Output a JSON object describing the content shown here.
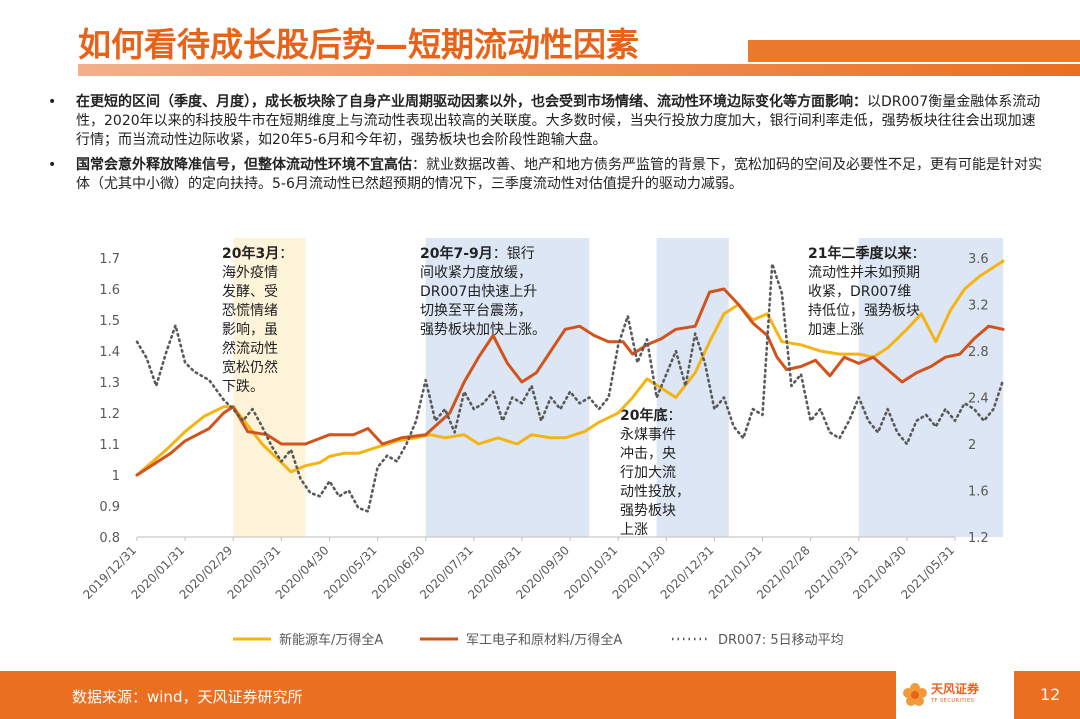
{
  "header": {
    "title": "如何看待成长股后势—短期流动性因素"
  },
  "bullets": [
    {
      "dot": "•",
      "bold": "在更短的区间（季度、月度），成长板块除了自身产业周期驱动因素以外，也会受到市场情绪、流动性环境边际变化等方面影响：",
      "text": "以DR007衡量金融体系流动性，2020年以来的科技股牛市在短期维度上与流动性表现出较高的关联度。大多数时候，当央行投放力度加大，银行间利率走低，强势板块往往会出现加速行情；而当流动性边际收紧，如20年5-6月和今年初，强势板块也会阶段性跑输大盘。"
    },
    {
      "dot": "•",
      "bold": "国常会意外释放降准信号，但整体流动性环境不宜高估",
      "text": "：就业数据改善、地产和地方债务严监管的背景下，宽松加码的空间及必要性不足，更有可能是针对实体（尤其中小微）的定向扶持。5-6月流动性已然超预期的情况下，三季度流动性对估值提升的驱动力减弱。"
    }
  ],
  "annotations": [
    {
      "title": "20年3月",
      "lines": [
        "：",
        "海外疫情",
        "发酵、受",
        "恐慌情绪",
        "影响，虽",
        "然流动性",
        "宽松仍然",
        "下跌。"
      ]
    },
    {
      "title": "20年7-9月",
      "lines": [
        "：银行",
        "间收紧力度放缓，",
        "DR007由快速上升",
        "切换至平台震荡，",
        "强势板块加快上涨。"
      ]
    },
    {
      "title": "20年底",
      "lines": [
        "：",
        "永煤事件",
        "冲击，央",
        "行加大流",
        "动性投放，",
        "强势板块",
        "上涨"
      ]
    },
    {
      "title": "21年二季度以来",
      "lines": [
        "：",
        "流动性并未如预期",
        "收紧，DR007维",
        "持低位，强势板块",
        "加速上涨"
      ]
    }
  ],
  "colors": {
    "accent": "#e8631a",
    "series1": "#f5b414",
    "series2": "#d0541c",
    "series3": "#595959",
    "shade_yellow": "#fdf3d8",
    "shade_blue": "#dce6f4"
  },
  "chart_data": {
    "type": "line",
    "x_ticks": [
      "2019/12/31",
      "2020/01/31",
      "2020/02/29",
      "2020/03/31",
      "2020/04/30",
      "2020/05/31",
      "2020/06/30",
      "2020/07/31",
      "2020/08/31",
      "2020/09/30",
      "2020/10/31",
      "2020/11/30",
      "2020/12/31",
      "2021/01/31",
      "2021/02/28",
      "2021/03/31",
      "2021/04/30",
      "2021/05/31"
    ],
    "y_left": {
      "ticks": [
        "0.8",
        "0.9",
        "1",
        "1.1",
        "1.2",
        "1.3",
        "1.4",
        "1.5",
        "1.6",
        "1.7"
      ],
      "range": [
        0.8,
        1.7
      ]
    },
    "y_right": {
      "ticks": [
        "1.2",
        "1.6",
        "2",
        "2.4",
        "2.8",
        "3.2",
        "3.6"
      ],
      "range": [
        1.2,
        3.6
      ]
    },
    "series": [
      {
        "name": "新能源车/万得全A",
        "axis": "left",
        "values": [
          [
            0,
            1.0
          ],
          [
            0.3,
            1.04
          ],
          [
            0.6,
            1.08
          ],
          [
            1,
            1.14
          ],
          [
            1.4,
            1.19
          ],
          [
            1.8,
            1.22
          ],
          [
            2,
            1.22
          ],
          [
            2.3,
            1.16
          ],
          [
            2.6,
            1.1
          ],
          [
            3,
            1.04
          ],
          [
            3.2,
            1.01
          ],
          [
            3.5,
            1.03
          ],
          [
            3.8,
            1.04
          ],
          [
            4,
            1.06
          ],
          [
            4.3,
            1.07
          ],
          [
            4.6,
            1.07
          ],
          [
            5,
            1.09
          ],
          [
            5.4,
            1.11
          ],
          [
            5.8,
            1.12
          ],
          [
            6.1,
            1.13
          ],
          [
            6.4,
            1.12
          ],
          [
            6.8,
            1.13
          ],
          [
            7.1,
            1.1
          ],
          [
            7.5,
            1.12
          ],
          [
            7.9,
            1.1
          ],
          [
            8.2,
            1.13
          ],
          [
            8.6,
            1.12
          ],
          [
            8.9,
            1.12
          ],
          [
            9.3,
            1.14
          ],
          [
            9.6,
            1.17
          ],
          [
            10,
            1.2
          ],
          [
            10.3,
            1.25
          ],
          [
            10.6,
            1.31
          ],
          [
            10.9,
            1.28
          ],
          [
            11.2,
            1.25
          ],
          [
            11.6,
            1.33
          ],
          [
            11.9,
            1.43
          ],
          [
            12.2,
            1.52
          ],
          [
            12.5,
            1.55
          ],
          [
            12.8,
            1.5
          ],
          [
            13.1,
            1.52
          ],
          [
            13.4,
            1.43
          ],
          [
            13.8,
            1.42
          ],
          [
            14.2,
            1.4
          ],
          [
            14.6,
            1.39
          ],
          [
            15,
            1.39
          ],
          [
            15.3,
            1.38
          ],
          [
            15.6,
            1.41
          ],
          [
            16,
            1.47
          ],
          [
            16.3,
            1.52
          ],
          [
            16.6,
            1.43
          ],
          [
            16.9,
            1.53
          ],
          [
            17.2,
            1.6
          ],
          [
            17.5,
            1.64
          ],
          [
            17.8,
            1.67
          ],
          [
            18,
            1.69
          ]
        ]
      },
      {
        "name": "军工电子和原材料/万得全A",
        "axis": "left",
        "values": [
          [
            0,
            1.0
          ],
          [
            0.3,
            1.03
          ],
          [
            0.7,
            1.07
          ],
          [
            1,
            1.11
          ],
          [
            1.5,
            1.15
          ],
          [
            1.8,
            1.2
          ],
          [
            2,
            1.22
          ],
          [
            2.3,
            1.14
          ],
          [
            2.7,
            1.13
          ],
          [
            3,
            1.1
          ],
          [
            3.5,
            1.1
          ],
          [
            4,
            1.13
          ],
          [
            4.5,
            1.13
          ],
          [
            4.8,
            1.15
          ],
          [
            5.1,
            1.1
          ],
          [
            5.5,
            1.12
          ],
          [
            6,
            1.13
          ],
          [
            6.5,
            1.2
          ],
          [
            6.8,
            1.3
          ],
          [
            7.1,
            1.38
          ],
          [
            7.4,
            1.45
          ],
          [
            7.7,
            1.36
          ],
          [
            8,
            1.3
          ],
          [
            8.3,
            1.33
          ],
          [
            8.6,
            1.4
          ],
          [
            8.9,
            1.47
          ],
          [
            9.2,
            1.48
          ],
          [
            9.5,
            1.45
          ],
          [
            9.8,
            1.43
          ],
          [
            10.1,
            1.43
          ],
          [
            10.3,
            1.39
          ],
          [
            10.6,
            1.42
          ],
          [
            10.9,
            1.44
          ],
          [
            11.2,
            1.47
          ],
          [
            11.6,
            1.48
          ],
          [
            11.9,
            1.59
          ],
          [
            12.2,
            1.6
          ],
          [
            12.5,
            1.55
          ],
          [
            12.8,
            1.49
          ],
          [
            13.1,
            1.45
          ],
          [
            13.3,
            1.38
          ],
          [
            13.5,
            1.34
          ],
          [
            13.8,
            1.35
          ],
          [
            14.1,
            1.37
          ],
          [
            14.4,
            1.32
          ],
          [
            14.7,
            1.38
          ],
          [
            15,
            1.36
          ],
          [
            15.3,
            1.38
          ],
          [
            15.6,
            1.34
          ],
          [
            15.9,
            1.3
          ],
          [
            16.2,
            1.33
          ],
          [
            16.5,
            1.35
          ],
          [
            16.8,
            1.38
          ],
          [
            17.1,
            1.39
          ],
          [
            17.4,
            1.44
          ],
          [
            17.7,
            1.48
          ],
          [
            18,
            1.47
          ]
        ]
      },
      {
        "name": "DR007: 5日移动平均",
        "axis": "right",
        "values": [
          [
            0,
            2.88
          ],
          [
            0.2,
            2.74
          ],
          [
            0.4,
            2.5
          ],
          [
            0.6,
            2.78
          ],
          [
            0.8,
            3.02
          ],
          [
            1.0,
            2.7
          ],
          [
            1.2,
            2.62
          ],
          [
            1.5,
            2.55
          ],
          [
            1.8,
            2.38
          ],
          [
            2.0,
            2.3
          ],
          [
            2.2,
            2.2
          ],
          [
            2.4,
            2.3
          ],
          [
            2.6,
            2.15
          ],
          [
            2.8,
            1.98
          ],
          [
            3.0,
            1.85
          ],
          [
            3.2,
            1.95
          ],
          [
            3.4,
            1.7
          ],
          [
            3.6,
            1.58
          ],
          [
            3.8,
            1.55
          ],
          [
            4.0,
            1.68
          ],
          [
            4.2,
            1.55
          ],
          [
            4.4,
            1.6
          ],
          [
            4.6,
            1.45
          ],
          [
            4.8,
            1.42
          ],
          [
            5.0,
            1.8
          ],
          [
            5.2,
            1.9
          ],
          [
            5.4,
            1.85
          ],
          [
            5.6,
            2.0
          ],
          [
            5.8,
            2.2
          ],
          [
            6.0,
            2.55
          ],
          [
            6.2,
            2.2
          ],
          [
            6.4,
            2.3
          ],
          [
            6.6,
            2.1
          ],
          [
            6.8,
            2.45
          ],
          [
            7.0,
            2.3
          ],
          [
            7.2,
            2.35
          ],
          [
            7.4,
            2.45
          ],
          [
            7.6,
            2.2
          ],
          [
            7.8,
            2.4
          ],
          [
            8.0,
            2.35
          ],
          [
            8.2,
            2.5
          ],
          [
            8.4,
            2.2
          ],
          [
            8.6,
            2.4
          ],
          [
            8.8,
            2.3
          ],
          [
            9.0,
            2.45
          ],
          [
            9.2,
            2.35
          ],
          [
            9.4,
            2.4
          ],
          [
            9.6,
            2.3
          ],
          [
            9.8,
            2.4
          ],
          [
            10.0,
            2.85
          ],
          [
            10.2,
            3.1
          ],
          [
            10.4,
            2.7
          ],
          [
            10.6,
            2.9
          ],
          [
            10.8,
            2.4
          ],
          [
            11.0,
            2.6
          ],
          [
            11.2,
            2.8
          ],
          [
            11.4,
            2.5
          ],
          [
            11.6,
            2.95
          ],
          [
            11.8,
            2.7
          ],
          [
            12.0,
            2.3
          ],
          [
            12.2,
            2.4
          ],
          [
            12.4,
            2.15
          ],
          [
            12.6,
            2.05
          ],
          [
            12.8,
            2.3
          ],
          [
            13.0,
            2.25
          ],
          [
            13.2,
            3.55
          ],
          [
            13.4,
            3.3
          ],
          [
            13.6,
            2.5
          ],
          [
            13.8,
            2.6
          ],
          [
            14.0,
            2.2
          ],
          [
            14.2,
            2.3
          ],
          [
            14.4,
            2.1
          ],
          [
            14.6,
            2.05
          ],
          [
            14.8,
            2.2
          ],
          [
            15.0,
            2.4
          ],
          [
            15.2,
            2.2
          ],
          [
            15.4,
            2.1
          ],
          [
            15.6,
            2.3
          ],
          [
            15.8,
            2.1
          ],
          [
            16.0,
            2.0
          ],
          [
            16.2,
            2.2
          ],
          [
            16.4,
            2.25
          ],
          [
            16.6,
            2.15
          ],
          [
            16.8,
            2.3
          ],
          [
            17.0,
            2.2
          ],
          [
            17.2,
            2.35
          ],
          [
            17.4,
            2.3
          ],
          [
            17.6,
            2.2
          ],
          [
            17.8,
            2.3
          ],
          [
            18.0,
            2.55
          ]
        ]
      }
    ],
    "shaded_periods": [
      {
        "start": 2.0,
        "end": 3.5,
        "color": "yellow"
      },
      {
        "start": 6.0,
        "end": 9.4,
        "color": "blue"
      },
      {
        "start": 10.8,
        "end": 12.3,
        "color": "blue"
      },
      {
        "start": 15.0,
        "end": 18.0,
        "color": "blue"
      }
    ],
    "legend_position": "bottom",
    "grid": false
  },
  "footer": {
    "source": "数据来源：wind，天风证券研究所",
    "logo": "天风证券",
    "logo_sub": "TF SECURITIES",
    "page": "12"
  }
}
